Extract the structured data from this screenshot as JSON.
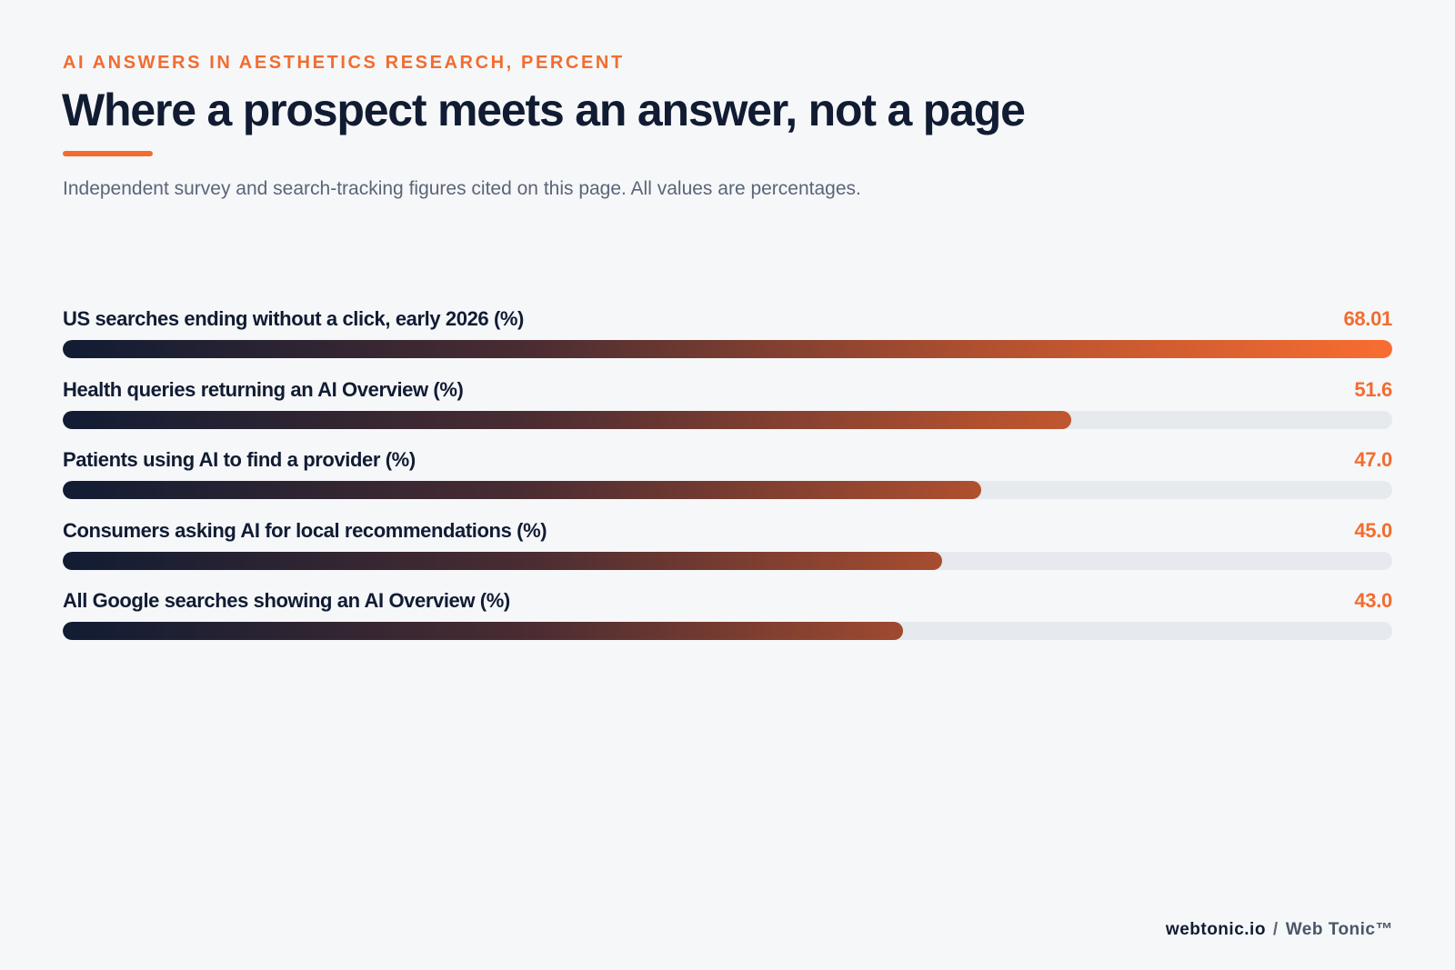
{
  "header": {
    "eyebrow": "AI ANSWERS IN AESTHETICS RESEARCH, PERCENT",
    "title": "Where a prospect meets an answer, not a page",
    "subtitle": "Independent survey and search-tracking figures cited on this page. All values are percentages."
  },
  "colors": {
    "accent": "#f26c2f",
    "navy": "#111c33",
    "track": "#e6e9ed",
    "background": "#f6f7f9"
  },
  "chart_data": {
    "type": "bar",
    "orientation": "horizontal",
    "title": "Where a prospect meets an answer, not a page",
    "subtitle": "Independent survey and search-tracking figures cited on this page. All values are percentages.",
    "xlim": [
      0,
      68.01
    ],
    "grid": false,
    "categories": [
      "US searches ending without a click, early 2026 (%)",
      "Health queries returning an AI Overview (%)",
      "Patients using AI to find a provider (%)",
      "Consumers asking AI for local recommendations (%)",
      "All Google searches showing an AI Overview (%)"
    ],
    "values": [
      68.01,
      51.6,
      47.0,
      45.0,
      43.0
    ],
    "value_labels": [
      "68.01",
      "51.6",
      "47.0",
      "45.0",
      "43.0"
    ]
  },
  "footer": {
    "domain": "webtonic.io",
    "separator": "/",
    "brand": "Web Tonic™"
  }
}
